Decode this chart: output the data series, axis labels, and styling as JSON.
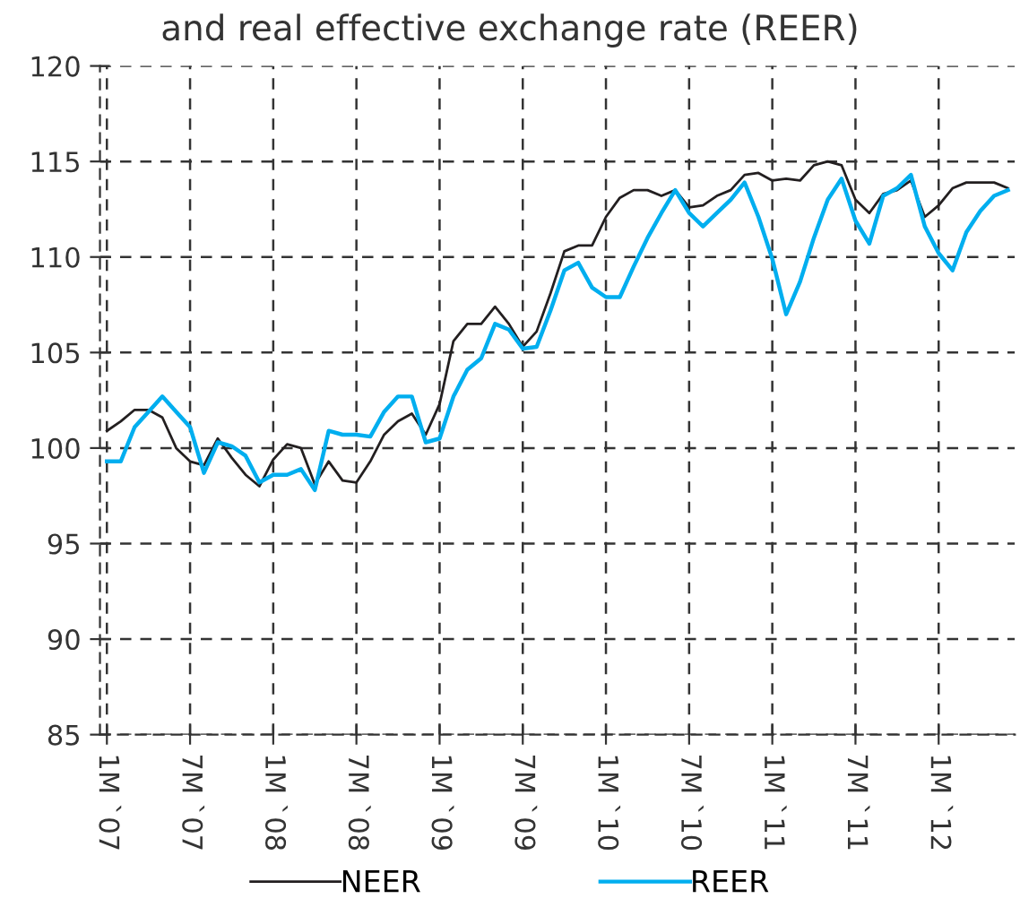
{
  "chart_data": {
    "type": "line",
    "title": "and real effective exchange rate (REER)",
    "categories": [
      "1M `07",
      null,
      null,
      null,
      null,
      null,
      "7M `07",
      null,
      null,
      null,
      null,
      null,
      "1M `08",
      null,
      null,
      null,
      null,
      null,
      "7M `08",
      null,
      null,
      null,
      null,
      null,
      "1M `09",
      null,
      null,
      null,
      null,
      null,
      "7M `09",
      null,
      null,
      null,
      null,
      null,
      "1M `10",
      null,
      null,
      null,
      null,
      null,
      "7M `10",
      null,
      null,
      null,
      null,
      null,
      "1M `11",
      null,
      null,
      null,
      null,
      null,
      "7M `11",
      null,
      null,
      null,
      null,
      null,
      "1M `12",
      null,
      null,
      null,
      null,
      null
    ],
    "series": [
      {
        "name": "NEER",
        "color": "#231f20",
        "values": [
          100.9,
          101.4,
          102.0,
          102.0,
          101.6,
          100.0,
          99.3,
          99.1,
          100.5,
          99.5,
          98.6,
          98.0,
          99.4,
          100.2,
          100.0,
          98.1,
          99.3,
          98.3,
          98.2,
          99.3,
          100.7,
          101.4,
          101.8,
          100.7,
          102.3,
          105.6,
          106.5,
          106.5,
          107.4,
          106.5,
          105.3,
          106.1,
          108.1,
          110.3,
          110.6,
          110.6,
          112.1,
          113.1,
          113.5,
          113.5,
          113.2,
          113.5,
          112.6,
          112.7,
          113.2,
          113.5,
          114.3,
          114.4,
          114.0,
          114.1,
          114.0,
          114.8,
          115.0,
          114.8,
          113.0,
          112.3,
          113.3,
          113.5,
          114.0,
          112.1,
          112.7,
          113.6,
          113.9,
          113.9,
          113.9,
          113.6
        ]
      },
      {
        "name": "REER",
        "color": "#00aeef",
        "values": [
          99.3,
          99.3,
          101.1,
          101.9,
          102.7,
          101.9,
          101.1,
          98.7,
          100.3,
          100.1,
          99.6,
          98.2,
          98.6,
          98.6,
          98.9,
          97.8,
          100.9,
          100.7,
          100.7,
          100.6,
          101.9,
          102.7,
          102.7,
          100.3,
          100.5,
          102.7,
          104.1,
          104.7,
          106.5,
          106.2,
          105.2,
          105.3,
          107.2,
          109.3,
          109.7,
          108.4,
          107.9,
          107.9,
          109.5,
          111.0,
          112.3,
          113.5,
          112.3,
          111.6,
          112.3,
          113.0,
          113.9,
          112.1,
          109.9,
          107.0,
          108.7,
          111.0,
          113.0,
          114.1,
          111.9,
          110.7,
          113.2,
          113.6,
          114.3,
          111.6,
          110.2,
          109.3,
          111.3,
          112.4,
          113.2,
          113.5
        ]
      }
    ],
    "ylim": [
      85,
      120
    ],
    "yticks": [
      85,
      90,
      95,
      100,
      105,
      110,
      115,
      120
    ],
    "grid": true,
    "legend": "bottom",
    "marker": "none",
    "line_style": "solid"
  }
}
